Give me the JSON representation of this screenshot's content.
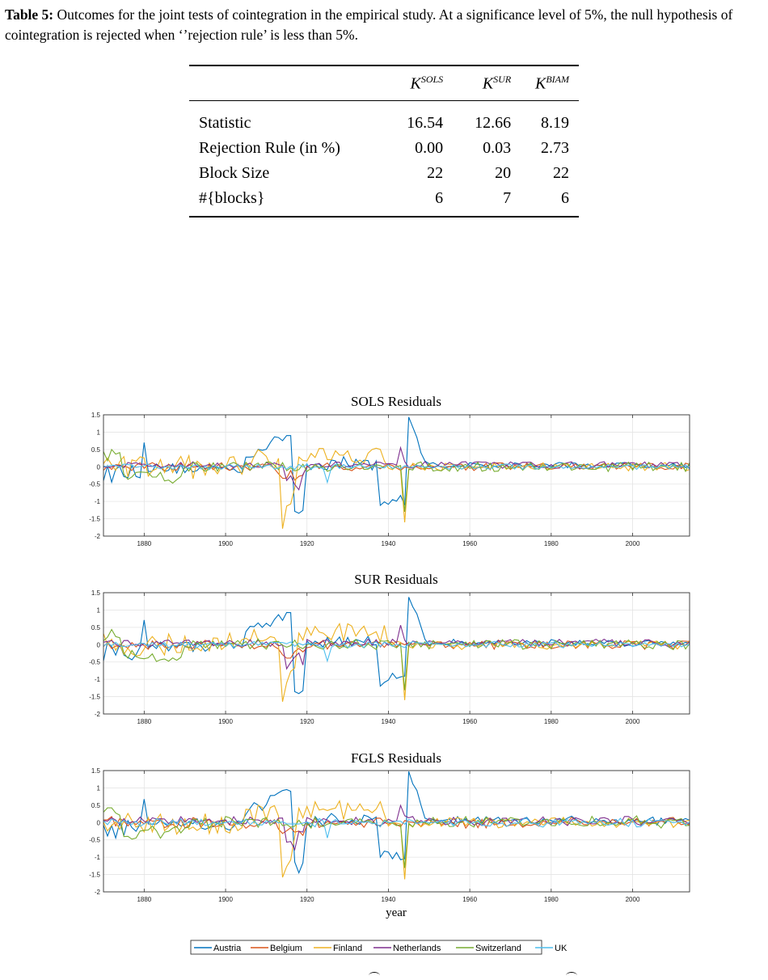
{
  "caption": {
    "label": "Table 5:",
    "text": " Outcomes for the joint tests of cointegration in the empirical study. At a significance level of 5%, the null hypothesis of cointegration is rejected when ‘’rejection rule’ is less than 5%."
  },
  "table": {
    "headers": [
      {
        "base": "K",
        "sup": "SOLS"
      },
      {
        "base": "K",
        "sup": "SUR"
      },
      {
        "base": "K",
        "sup": "BIAM"
      }
    ],
    "rows": [
      {
        "label": "Statistic",
        "values": [
          "16.54",
          "12.66",
          "8.19"
        ]
      },
      {
        "label": "Rejection Rule (in %)",
        "values": [
          "0.00",
          "0.03",
          "2.73"
        ]
      },
      {
        "label": "Block Size",
        "values": [
          "22",
          "20",
          "22"
        ]
      },
      {
        "label": "#{blocks}",
        "values": [
          "6",
          "7",
          "6"
        ]
      }
    ]
  },
  "chart_data": [
    {
      "type": "line",
      "title": "SOLS Residuals",
      "xlabel": "",
      "ylim": [
        -2,
        1.5
      ],
      "xlim": [
        1870,
        2014
      ],
      "xticks": [
        "1880",
        "1900",
        "1920",
        "1940",
        "1960",
        "1980",
        "2000"
      ],
      "yticks": [
        "1.5",
        "1",
        "0.5",
        "0",
        "-0.5",
        "-1",
        "-1.5",
        "-2"
      ],
      "grid": true
    },
    {
      "type": "line",
      "title": "SUR Residuals",
      "xlabel": "",
      "ylim": [
        -2,
        1.5
      ],
      "xlim": [
        1870,
        2014
      ],
      "xticks": [
        "1880",
        "1900",
        "1920",
        "1940",
        "1960",
        "1980",
        "2000"
      ],
      "yticks": [
        "1.5",
        "1",
        "0.5",
        "0",
        "-0.5",
        "-1",
        "-1.5",
        "-2"
      ],
      "grid": true
    },
    {
      "type": "line",
      "title": "FGLS Residuals",
      "xlabel": "year",
      "ylim": [
        -2,
        1.5
      ],
      "xlim": [
        1870,
        2014
      ],
      "xticks": [
        "1880",
        "1900",
        "1920",
        "1940",
        "1960",
        "1980",
        "2000"
      ],
      "yticks": [
        "1.5",
        "1",
        "0.5",
        "0",
        "-0.5",
        "-1",
        "-1.5",
        "-2"
      ],
      "grid": true
    }
  ],
  "series": [
    {
      "name": "Austria",
      "color": "#0072BD"
    },
    {
      "name": "Belgium",
      "color": "#D95319"
    },
    {
      "name": "Finland",
      "color": "#EDB120"
    },
    {
      "name": "Netherlands",
      "color": "#7E2F8E"
    },
    {
      "name": "Switzerland",
      "color": "#77AC30"
    },
    {
      "name": "UK",
      "color": "#4DBEEE"
    }
  ]
}
